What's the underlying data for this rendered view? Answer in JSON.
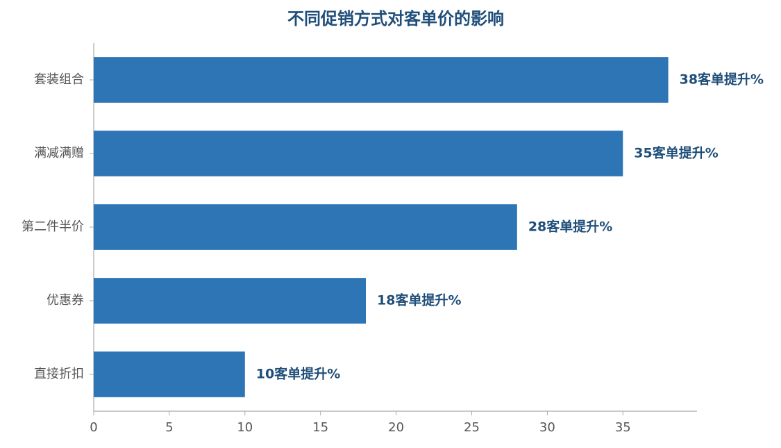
{
  "chart_data": {
    "type": "bar",
    "orientation": "horizontal",
    "title": "不同促销方式对客单价的影响",
    "categories": [
      "套装组合",
      "满减满赠",
      "第二件半价",
      "优惠券",
      "直接折扣"
    ],
    "values": [
      38,
      35,
      28,
      18,
      10
    ],
    "value_labels": [
      "38客单提升%",
      "35客单提升%",
      "28客单提升%",
      "18客单提升%",
      "10客单提升%"
    ],
    "color": "#2e75b6",
    "xlim": [
      0,
      39.9
    ],
    "xticks": [
      0,
      5,
      10,
      15,
      20,
      25,
      30,
      35
    ],
    "grid": false
  }
}
